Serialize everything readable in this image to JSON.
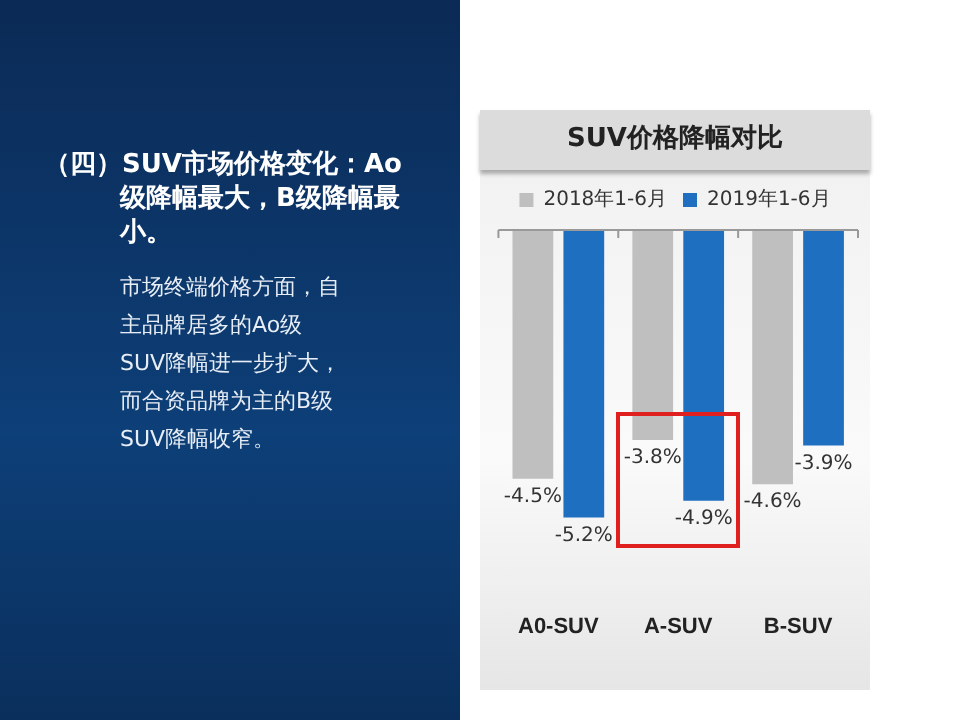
{
  "chart_data": {
    "type": "bar",
    "title": "SUV价格降幅对比",
    "categories": [
      "A0-SUV",
      "A-SUV",
      "B-SUV"
    ],
    "series": [
      {
        "name": "2018年1-6月",
        "color": "#bfbfbf",
        "values": [
          -4.5,
          -3.8,
          -4.6
        ],
        "value_labels": [
          "-4.5%",
          "-3.8%",
          "-4.6%"
        ]
      },
      {
        "name": "2019年1-6月",
        "color": "#1f6fc1",
        "values": [
          -5.2,
          -4.9,
          -3.9
        ],
        "value_labels": [
          "-5.2%",
          "-4.9%",
          "-3.9%"
        ]
      }
    ],
    "legend": "top",
    "annotations": [
      "（四）SUV市场价格变化：Ao级降幅最大，B级降幅最小。",
      "市场终端价格方面，自主品牌居多的Ao级SUV降幅进一步扩大，而合资品牌为主的B级SUV降幅收窄。"
    ]
  }
}
